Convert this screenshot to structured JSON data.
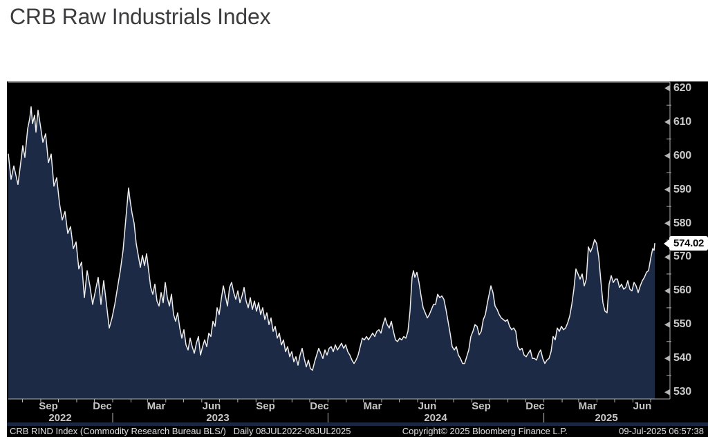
{
  "title": "CRB Raw Industrials Index",
  "chart": {
    "background": "#000000",
    "line_color": "#eeeeee",
    "fill_color": "#1c2a46",
    "axis_color": "#b5b5b5",
    "label_color": "#c9c9c9",
    "last_price": "574.02",
    "y_axis": {
      "min": 528,
      "max": 621.8,
      "majors": [
        530,
        540,
        550,
        560,
        570,
        580,
        590,
        600,
        610,
        620
      ],
      "minors": [
        535,
        545,
        555,
        565,
        575,
        585,
        595,
        605,
        615
      ]
    },
    "x_axis": {
      "t_max": 935,
      "range_start": "08JUL2022",
      "range_end": "08JUL2025",
      "month_labels": [
        {
          "label": "Sep",
          "t": 58
        },
        {
          "label": "Dec",
          "t": 136
        },
        {
          "label": "Mar",
          "t": 214
        },
        {
          "label": "Jun",
          "t": 294
        },
        {
          "label": "Sep",
          "t": 372
        },
        {
          "label": "Dec",
          "t": 450
        },
        {
          "label": "Mar",
          "t": 527
        },
        {
          "label": "Jun",
          "t": 606
        },
        {
          "label": "Sep",
          "t": 684
        },
        {
          "label": "Dec",
          "t": 762
        },
        {
          "label": "Mar",
          "t": 838
        },
        {
          "label": "Jun",
          "t": 917
        }
      ],
      "year_labels": [
        {
          "label": "2022",
          "t": 75
        },
        {
          "label": "2023",
          "t": 303
        },
        {
          "label": "2024",
          "t": 618
        },
        {
          "label": "2025",
          "t": 865
        }
      ],
      "year_separators_t": [
        151,
        462.4,
        774.6
      ]
    }
  },
  "chart_data": {
    "type": "area",
    "title": "CRB Raw Industrials Index",
    "x_range": [
      "08JUL2022",
      "08JUL2025"
    ],
    "t_range": [
      0,
      935
    ],
    "ylim": [
      528,
      621.8
    ],
    "y_ticks": [
      530,
      540,
      550,
      560,
      570,
      580,
      590,
      600,
      610,
      620
    ],
    "grid": false,
    "last": 574.02,
    "points": [
      [
        0,
        600.5
      ],
      [
        4,
        593
      ],
      [
        8,
        597
      ],
      [
        14,
        591.5
      ],
      [
        18,
        598
      ],
      [
        21,
        603
      ],
      [
        24,
        599.5
      ],
      [
        28,
        608
      ],
      [
        31,
        611
      ],
      [
        33,
        614.5
      ],
      [
        35,
        609.5
      ],
      [
        38,
        612
      ],
      [
        40,
        607
      ],
      [
        43,
        613.5
      ],
      [
        46,
        609.5
      ],
      [
        50,
        604
      ],
      [
        54,
        606.5
      ],
      [
        58,
        598
      ],
      [
        62,
        600.5
      ],
      [
        66,
        591
      ],
      [
        70,
        593.5
      ],
      [
        74,
        586
      ],
      [
        78,
        581
      ],
      [
        82,
        583.5
      ],
      [
        86,
        577
      ],
      [
        90,
        579
      ],
      [
        94,
        572.5
      ],
      [
        98,
        574.5
      ],
      [
        102,
        566.5
      ],
      [
        106,
        568.5
      ],
      [
        110,
        558
      ],
      [
        114,
        566
      ],
      [
        118,
        561.5
      ],
      [
        122,
        556
      ],
      [
        126,
        560
      ],
      [
        130,
        564
      ],
      [
        134,
        556
      ],
      [
        138,
        563
      ],
      [
        142,
        556
      ],
      [
        146,
        549
      ],
      [
        150,
        552
      ],
      [
        154,
        556
      ],
      [
        158,
        561
      ],
      [
        162,
        566
      ],
      [
        166,
        572
      ],
      [
        169,
        579
      ],
      [
        172,
        586
      ],
      [
        174,
        590.5
      ],
      [
        176,
        587
      ],
      [
        179,
        583
      ],
      [
        182,
        580
      ],
      [
        185,
        574
      ],
      [
        188,
        570.5
      ],
      [
        191,
        567
      ],
      [
        194,
        570.5
      ],
      [
        197,
        567.5
      ],
      [
        200,
        571
      ],
      [
        203,
        566
      ],
      [
        206,
        561
      ],
      [
        209,
        559
      ],
      [
        212,
        562
      ],
      [
        215,
        557
      ],
      [
        218,
        555.5
      ],
      [
        221,
        559.5
      ],
      [
        224,
        556.5
      ],
      [
        227,
        562.5
      ],
      [
        230,
        558
      ],
      [
        233,
        555.5
      ],
      [
        236,
        559
      ],
      [
        239,
        553
      ],
      [
        242,
        551
      ],
      [
        245,
        553.5
      ],
      [
        248,
        549
      ],
      [
        251,
        546
      ],
      [
        254,
        548.5
      ],
      [
        257,
        544
      ],
      [
        260,
        542.5
      ],
      [
        263,
        546
      ],
      [
        266,
        543.5
      ],
      [
        269,
        541.5
      ],
      [
        272,
        544.5
      ],
      [
        275,
        546.5
      ],
      [
        278,
        541
      ],
      [
        281,
        543.5
      ],
      [
        284,
        545.5
      ],
      [
        287,
        543.5
      ],
      [
        290,
        547.5
      ],
      [
        293,
        546.5
      ],
      [
        296,
        551
      ],
      [
        299,
        549.5
      ],
      [
        302,
        555
      ],
      [
        305,
        553
      ],
      [
        308,
        557.5
      ],
      [
        311,
        561.5
      ],
      [
        314,
        558.5
      ],
      [
        317,
        555.5
      ],
      [
        320,
        561
      ],
      [
        323,
        562.5
      ],
      [
        326,
        559.5
      ],
      [
        329,
        557.5
      ],
      [
        332,
        560
      ],
      [
        335,
        556.5
      ],
      [
        338,
        558.5
      ],
      [
        341,
        561
      ],
      [
        344,
        557
      ],
      [
        347,
        555
      ],
      [
        350,
        558
      ],
      [
        353,
        554.5
      ],
      [
        356,
        557
      ],
      [
        359,
        554
      ],
      [
        362,
        556.5
      ],
      [
        365,
        553
      ],
      [
        368,
        555
      ],
      [
        371,
        551.5
      ],
      [
        374,
        553.5
      ],
      [
        377,
        550
      ],
      [
        380,
        552
      ],
      [
        383,
        548
      ],
      [
        386,
        549.5
      ],
      [
        389,
        546
      ],
      [
        392,
        547.5
      ],
      [
        395,
        544
      ],
      [
        398,
        545.5
      ],
      [
        401,
        542
      ],
      [
        404,
        543.5
      ],
      [
        407,
        540.5
      ],
      [
        410,
        542
      ],
      [
        413,
        539
      ],
      [
        416,
        540.5
      ],
      [
        419,
        538
      ],
      [
        422,
        541
      ],
      [
        425,
        543
      ],
      [
        428,
        540
      ],
      [
        431,
        537.5
      ],
      [
        434,
        539.5
      ],
      [
        437,
        537
      ],
      [
        440,
        536.5
      ],
      [
        443,
        539
      ],
      [
        446,
        541
      ],
      [
        449,
        543
      ],
      [
        452,
        541.5
      ],
      [
        455,
        540
      ],
      [
        458,
        542.5
      ],
      [
        461,
        541
      ],
      [
        464,
        543
      ],
      [
        467,
        543.5
      ],
      [
        470,
        542
      ],
      [
        473,
        544
      ],
      [
        476,
        542.5
      ],
      [
        479,
        543.5
      ],
      [
        482,
        544.5
      ],
      [
        485,
        543
      ],
      [
        488,
        544
      ],
      [
        491,
        542
      ],
      [
        494,
        541
      ],
      [
        497,
        539.5
      ],
      [
        500,
        538.5
      ],
      [
        503,
        539.5
      ],
      [
        506,
        541
      ],
      [
        509,
        543.5
      ],
      [
        512,
        546
      ],
      [
        515,
        545.5
      ],
      [
        518,
        546.5
      ],
      [
        521,
        545.5
      ],
      [
        524,
        546.5
      ],
      [
        527,
        547.5
      ],
      [
        530,
        546.5
      ],
      [
        533,
        548
      ],
      [
        536,
        548.5
      ],
      [
        539,
        547.5
      ],
      [
        542,
        550
      ],
      [
        545,
        552
      ],
      [
        548,
        550
      ],
      [
        551,
        549
      ],
      [
        554,
        551
      ],
      [
        557,
        548
      ],
      [
        560,
        545.5
      ],
      [
        563,
        545
      ],
      [
        566,
        546
      ],
      [
        569,
        545.5
      ],
      [
        572,
        546.5
      ],
      [
        575,
        546
      ],
      [
        578,
        548
      ],
      [
        581,
        554
      ],
      [
        584,
        564
      ],
      [
        586,
        566
      ],
      [
        588,
        564
      ],
      [
        591,
        565.5
      ],
      [
        594,
        562.5
      ],
      [
        597,
        558.5
      ],
      [
        600,
        555
      ],
      [
        603,
        553.5
      ],
      [
        606,
        552
      ],
      [
        609,
        553
      ],
      [
        612,
        554.5
      ],
      [
        615,
        556
      ],
      [
        618,
        556
      ],
      [
        621,
        559
      ],
      [
        624,
        558
      ],
      [
        627,
        558.5
      ],
      [
        630,
        557.5
      ],
      [
        633,
        554.5
      ],
      [
        636,
        551
      ],
      [
        639,
        547.5
      ],
      [
        642,
        543.5
      ],
      [
        645,
        542.5
      ],
      [
        648,
        543.5
      ],
      [
        651,
        541
      ],
      [
        654,
        540
      ],
      [
        657,
        538.5
      ],
      [
        660,
        538.5
      ],
      [
        663,
        540.5
      ],
      [
        666,
        542.5
      ],
      [
        669,
        546.5
      ],
      [
        672,
        548
      ],
      [
        675,
        550
      ],
      [
        678,
        549.5
      ],
      [
        681,
        547
      ],
      [
        684,
        548
      ],
      [
        687,
        551.5
      ],
      [
        690,
        553
      ],
      [
        693,
        556.5
      ],
      [
        696,
        559.5
      ],
      [
        698,
        561.5
      ],
      [
        701,
        559.5
      ],
      [
        704,
        555.5
      ],
      [
        707,
        554.5
      ],
      [
        710,
        553
      ],
      [
        713,
        552
      ],
      [
        716,
        551.5
      ],
      [
        719,
        551
      ],
      [
        722,
        551.5
      ],
      [
        725,
        549.5
      ],
      [
        728,
        548.5
      ],
      [
        731,
        549
      ],
      [
        734,
        548
      ],
      [
        737,
        543.5
      ],
      [
        740,
        542.5
      ],
      [
        743,
        543
      ],
      [
        746,
        541
      ],
      [
        749,
        540.5
      ],
      [
        752,
        541.5
      ],
      [
        755,
        542.5
      ],
      [
        758,
        540
      ],
      [
        761,
        540
      ],
      [
        764,
        539.5
      ],
      [
        767,
        541.5
      ],
      [
        770,
        542.5
      ],
      [
        773,
        540
      ],
      [
        776,
        538.5
      ],
      [
        779,
        539.5
      ],
      [
        782,
        540
      ],
      [
        785,
        542
      ],
      [
        788,
        546.5
      ],
      [
        791,
        545.5
      ],
      [
        794,
        549
      ],
      [
        797,
        548
      ],
      [
        800,
        549.5
      ],
      [
        803,
        548.5
      ],
      [
        806,
        549
      ],
      [
        809,
        550.5
      ],
      [
        812,
        552.5
      ],
      [
        815,
        556
      ],
      [
        818,
        560.5
      ],
      [
        821,
        566.5
      ],
      [
        824,
        565
      ],
      [
        827,
        563.5
      ],
      [
        830,
        565
      ],
      [
        833,
        561.5
      ],
      [
        836,
        563.5
      ],
      [
        839,
        573
      ],
      [
        842,
        571.5
      ],
      [
        845,
        573
      ],
      [
        848,
        575.2
      ],
      [
        851,
        574
      ],
      [
        854,
        570
      ],
      [
        857,
        563
      ],
      [
        860,
        556.5
      ],
      [
        863,
        554
      ],
      [
        866,
        553.5
      ],
      [
        869,
        562
      ],
      [
        872,
        564.5
      ],
      [
        875,
        562.5
      ],
      [
        878,
        563.5
      ],
      [
        881,
        563.5
      ],
      [
        884,
        561
      ],
      [
        887,
        562
      ],
      [
        890,
        560.5
      ],
      [
        893,
        561
      ],
      [
        896,
        563
      ],
      [
        899,
        560.5
      ],
      [
        902,
        560
      ],
      [
        905,
        562.5
      ],
      [
        908,
        561.5
      ],
      [
        911,
        559.5
      ],
      [
        914,
        561.5
      ],
      [
        917,
        563
      ],
      [
        920,
        564
      ],
      [
        923,
        565.5
      ],
      [
        926,
        566
      ],
      [
        929,
        569.5
      ],
      [
        932,
        572.5
      ],
      [
        934,
        572
      ],
      [
        935,
        574.02
      ]
    ]
  },
  "status_bar": {
    "left": "CRB RIND Index (Commodity Research Bureau BLS/)   Daily 08JUL2022-08JUL2025",
    "copyright": "Copyright© 2025 Bloomberg Finance L.P.",
    "datetime": "09-Jul-2025 06:57:38"
  }
}
